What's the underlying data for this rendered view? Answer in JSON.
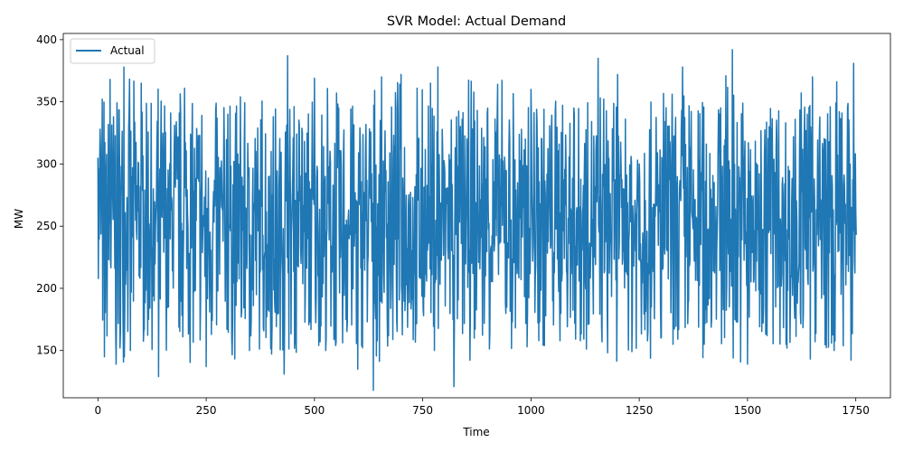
{
  "chart_data": {
    "type": "line",
    "title": "SVR Model: Actual Demand",
    "xlabel": "Time",
    "ylabel": "MW",
    "xlim": [
      -80,
      1830
    ],
    "ylim": [
      112,
      405
    ],
    "xticks": [
      0,
      250,
      500,
      750,
      1000,
      1250,
      1500,
      1750
    ],
    "yticks": [
      150,
      200,
      250,
      300,
      350,
      400
    ],
    "grid": false,
    "legend_position": "upper-left",
    "series": [
      {
        "name": "Actual",
        "color": "#1f77b4",
        "n_points": 1752,
        "value_range": [
          118,
          392
        ],
        "sample_x": [
          0,
          5,
          15,
          28,
          42,
          60,
          75,
          100,
          130,
          140,
          160,
          200,
          250,
          300,
          350,
          400,
          430,
          438,
          500,
          550,
          590,
          600,
          636,
          700,
          750,
          785,
          800,
          822,
          900,
          1000,
          1050,
          1100,
          1155,
          1200,
          1250,
          1300,
          1350,
          1400,
          1450,
          1465,
          1500,
          1550,
          1600,
          1650,
          1700,
          1745,
          1752
        ],
        "sample_y": [
          305,
          328,
          145,
          368,
          139,
          378,
          150,
          365,
          190,
          129,
          280,
          361,
          137,
          340,
          150,
          310,
          131,
          387,
          369,
          157,
          280,
          135,
          118,
          372,
          210,
          378,
          300,
          121,
          345,
          360,
          190,
          340,
          385,
          372,
          300,
          160,
          378,
          155,
          371,
          392,
          139,
          330,
          210,
          370,
          150,
          381,
          243
        ]
      }
    ]
  }
}
